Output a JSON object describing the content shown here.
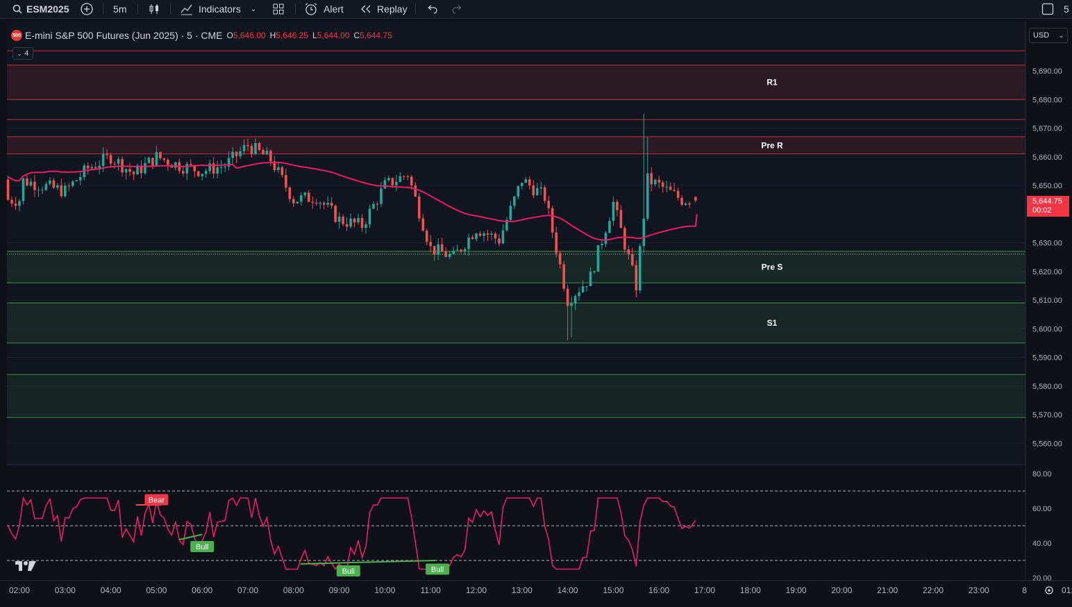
{
  "toolbar": {
    "symbol": "ESM2025",
    "interval": "5m",
    "indicators_label": "Indicators",
    "alert_label": "Alert",
    "replay_label": "Replay",
    "layout_count": "5"
  },
  "legend": {
    "logo_text": "500",
    "title": "E-mini S&P 500 Futures (Jun 2025) · 5 · CME",
    "o_key": "O",
    "o_val": "5,646.00",
    "h_key": "H",
    "h_val": "5,646.25",
    "l_key": "L",
    "l_val": "5,644.00",
    "c_key": "C",
    "c_val": "5,644.75",
    "collapse_count": "4"
  },
  "currency": "USD",
  "last_price": {
    "value": "5,644.75",
    "countdown": "00:02"
  },
  "price_axis": [
    "5,690.00",
    "5,680.00",
    "5,670.00",
    "5,660.00",
    "5,650.00",
    "5,630.00",
    "5,620.00",
    "5,610.00",
    "5,600.00",
    "5,590.00",
    "5,580.00",
    "5,570.00",
    "5,560.00"
  ],
  "osc_axis": [
    "80.00",
    "60.00",
    "40.00",
    "20.00"
  ],
  "time_axis": [
    "02:00",
    "03:00",
    "04:00",
    "05:00",
    "06:00",
    "07:00",
    "08:00",
    "09:00",
    "10:00",
    "11:00",
    "12:00",
    "13:00",
    "14:00",
    "15:00",
    "16:00",
    "17:00",
    "18:00",
    "19:00",
    "20:00",
    "21:00",
    "22:00",
    "23:00",
    "8",
    "01:"
  ],
  "zones": [
    {
      "label": "R1",
      "top": 5680,
      "bottom": 5692,
      "kind": "resistance"
    },
    {
      "label": "Pre R",
      "top": 5667,
      "bottom": 5661,
      "kind": "resistance"
    },
    {
      "label": "Pre S",
      "top": 5627,
      "bottom": 5616,
      "kind": "support"
    },
    {
      "label": "S1",
      "top": 5609,
      "bottom": 5595,
      "kind": "support"
    }
  ],
  "osc_labels": [
    {
      "text": "Bear",
      "kind": "bear"
    },
    {
      "text": "Bull",
      "kind": "bull"
    },
    {
      "text": "Bull",
      "kind": "bull"
    },
    {
      "text": "Bull",
      "kind": "bull"
    }
  ],
  "colors": {
    "bull": "#26a69a",
    "bear": "#ef5350",
    "ma": "#e91e63",
    "resistance": "#f23645",
    "support": "#4caf50",
    "rsi": "#e91e63",
    "bull_label": "#4caf50",
    "bear_label": "#f23645"
  },
  "chart_data": {
    "type": "candlestick",
    "last_candle": {
      "open": 5646.0,
      "high": 5646.25,
      "low": 5644.0,
      "close": 5644.75
    },
    "ylim": [
      5555,
      5697
    ],
    "osc_ylim": [
      20,
      80
    ],
    "osc_levels": [
      70,
      50,
      30
    ],
    "support_lines": [
      5584,
      5569
    ],
    "close_path": [
      {
        "t": "02:00",
        "v": 5652
      },
      {
        "t": "02:30",
        "v": 5650
      },
      {
        "t": "03:00",
        "v": 5648
      },
      {
        "t": "03:30",
        "v": 5656
      },
      {
        "t": "04:00",
        "v": 5660
      },
      {
        "t": "04:30",
        "v": 5654
      },
      {
        "t": "05:00",
        "v": 5660
      },
      {
        "t": "05:30",
        "v": 5657
      },
      {
        "t": "06:00",
        "v": 5655
      },
      {
        "t": "06:30",
        "v": 5657
      },
      {
        "t": "07:00",
        "v": 5664
      },
      {
        "t": "07:30",
        "v": 5659
      },
      {
        "t": "08:00",
        "v": 5645
      },
      {
        "t": "08:30",
        "v": 5646
      },
      {
        "t": "09:00",
        "v": 5638
      },
      {
        "t": "09:30",
        "v": 5636
      },
      {
        "t": "10:00",
        "v": 5650
      },
      {
        "t": "10:30",
        "v": 5654
      },
      {
        "t": "11:00",
        "v": 5628
      },
      {
        "t": "11:30",
        "v": 5625
      },
      {
        "t": "12:00",
        "v": 5635
      },
      {
        "t": "12:30",
        "v": 5631
      },
      {
        "t": "13:00",
        "v": 5652
      },
      {
        "t": "13:30",
        "v": 5646
      },
      {
        "t": "14:00",
        "v": 5610
      },
      {
        "t": "14:30",
        "v": 5618
      },
      {
        "t": "15:00",
        "v": 5644
      },
      {
        "t": "15:30",
        "v": 5615
      },
      {
        "t": "15:45",
        "v": 5652
      },
      {
        "t": "16:00",
        "v": 5650
      },
      {
        "t": "16:30",
        "v": 5645
      }
    ]
  }
}
